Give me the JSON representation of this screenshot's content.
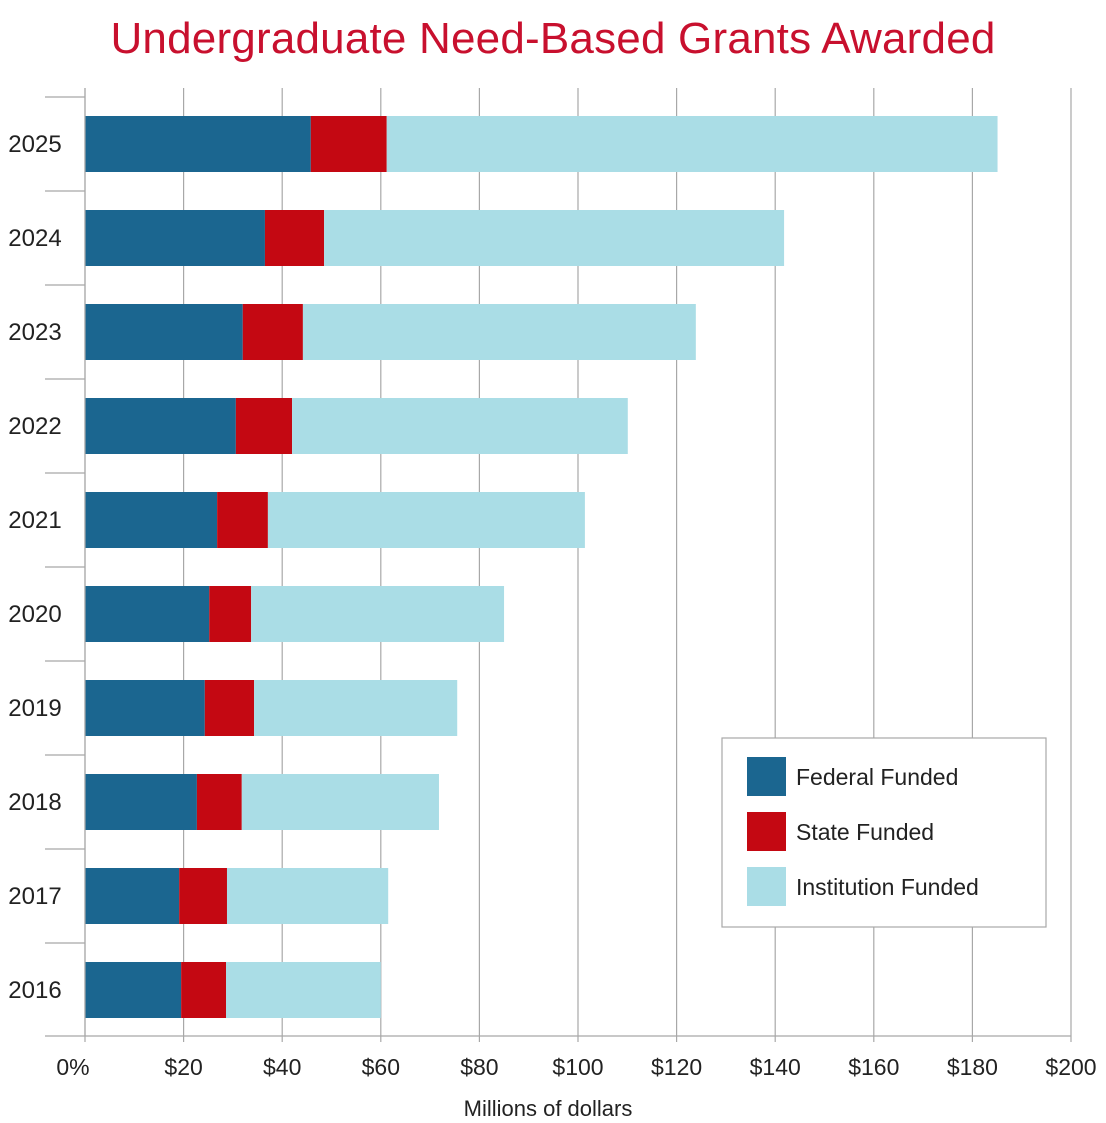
{
  "chart_data": {
    "type": "bar",
    "orientation": "horizontal",
    "stacked": true,
    "title": "Undergraduate Need-Based Grants Awarded",
    "xlabel": "Millions of dollars",
    "ylabel": "",
    "xlim": [
      0,
      200
    ],
    "x_ticks": [
      0,
      20,
      40,
      60,
      80,
      100,
      120,
      140,
      160,
      180,
      200
    ],
    "x_tick_labels": [
      "0%",
      "$20",
      "$40",
      "$60",
      "$80",
      "$100",
      "$120",
      "$140",
      "$160",
      "$180",
      "$200"
    ],
    "grid": "vertical",
    "legend_position": "bottom-right",
    "categories": [
      "2025",
      "2024",
      "2023",
      "2022",
      "2021",
      "2020",
      "2019",
      "2018",
      "2017",
      "2016"
    ],
    "series": [
      {
        "name": "Federal Funded",
        "color": "#1b6690",
        "values": [
          45.8,
          36.5,
          32.0,
          30.6,
          26.8,
          25.2,
          24.3,
          22.7,
          19.1,
          19.5
        ]
      },
      {
        "name": "State Funded",
        "color": "#c40812",
        "values": [
          15.4,
          12.0,
          12.2,
          11.4,
          10.3,
          8.5,
          10.0,
          9.1,
          9.7,
          9.1
        ]
      },
      {
        "name": "Institution Funded",
        "color": "#aadde6",
        "values": [
          123.9,
          93.3,
          79.7,
          68.1,
          64.3,
          51.3,
          41.2,
          40.0,
          32.7,
          31.4
        ]
      }
    ],
    "title_color": "#c8102e"
  }
}
